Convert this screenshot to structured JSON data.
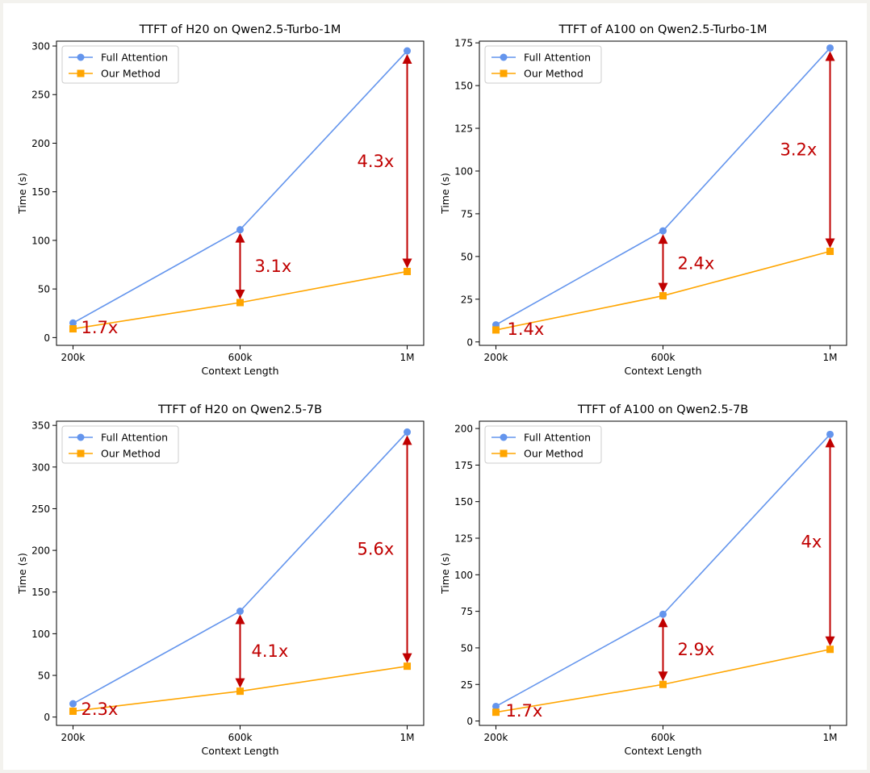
{
  "chart_data": [
    {
      "type": "line",
      "title": "TTFT of H20 on Qwen2.5-Turbo-1M",
      "xlabel": "Context Length",
      "ylabel": "Time (s)",
      "categories": [
        "200k",
        "600k",
        "1M"
      ],
      "ylim": [
        -8,
        305
      ],
      "yticks": [
        0,
        50,
        100,
        150,
        200,
        250,
        300
      ],
      "legend": "top-left",
      "grid": false,
      "series": [
        {
          "name": "Full Attention",
          "values": [
            15,
            111,
            295
          ],
          "color": "#6495ed",
          "marker": "circle"
        },
        {
          "name": "Our Method",
          "values": [
            9,
            36,
            68
          ],
          "color": "#ffa500",
          "marker": "square"
        }
      ],
      "annotations": [
        {
          "category": "200k",
          "label": "1.7x",
          "arrow": false
        },
        {
          "category": "600k",
          "label": "3.1x",
          "arrow": true
        },
        {
          "category": "1M",
          "label": "4.3x",
          "arrow": true
        }
      ]
    },
    {
      "type": "line",
      "title": "TTFT of A100 on Qwen2.5-Turbo-1M",
      "xlabel": "Context Length",
      "ylabel": "Time (s)",
      "categories": [
        "200k",
        "600k",
        "1M"
      ],
      "ylim": [
        -2,
        176
      ],
      "yticks": [
        0,
        25,
        50,
        75,
        100,
        125,
        150,
        175
      ],
      "legend": "top-left",
      "grid": false,
      "series": [
        {
          "name": "Full Attention",
          "values": [
            10,
            65,
            172
          ],
          "color": "#6495ed",
          "marker": "circle"
        },
        {
          "name": "Our Method",
          "values": [
            7,
            27,
            53
          ],
          "color": "#ffa500",
          "marker": "square"
        }
      ],
      "annotations": [
        {
          "category": "200k",
          "label": "1.4x",
          "arrow": false
        },
        {
          "category": "600k",
          "label": "2.4x",
          "arrow": true
        },
        {
          "category": "1M",
          "label": "3.2x",
          "arrow": true
        }
      ]
    },
    {
      "type": "line",
      "title": "TTFT of H20 on Qwen2.5-7B",
      "xlabel": "Context Length",
      "ylabel": "Time (s)",
      "categories": [
        "200k",
        "600k",
        "1M"
      ],
      "ylim": [
        -10,
        355
      ],
      "yticks": [
        0,
        50,
        100,
        150,
        200,
        250,
        300,
        350
      ],
      "legend": "top-left",
      "grid": false,
      "series": [
        {
          "name": "Full Attention",
          "values": [
            16,
            127,
            342
          ],
          "color": "#6495ed",
          "marker": "circle"
        },
        {
          "name": "Our Method",
          "values": [
            7,
            31,
            61
          ],
          "color": "#ffa500",
          "marker": "square"
        }
      ],
      "annotations": [
        {
          "category": "200k",
          "label": "2.3x",
          "arrow": false
        },
        {
          "category": "600k",
          "label": "4.1x",
          "arrow": true
        },
        {
          "category": "1M",
          "label": "5.6x",
          "arrow": true
        }
      ]
    },
    {
      "type": "line",
      "title": "TTFT of A100 on Qwen2.5-7B",
      "xlabel": "Context Length",
      "ylabel": "Time (s)",
      "categories": [
        "200k",
        "600k",
        "1M"
      ],
      "ylim": [
        -3,
        205
      ],
      "yticks": [
        0,
        25,
        50,
        75,
        100,
        125,
        150,
        175,
        200
      ],
      "legend": "top-left",
      "grid": false,
      "series": [
        {
          "name": "Full Attention",
          "values": [
            10,
            73,
            196
          ],
          "color": "#6495ed",
          "marker": "circle"
        },
        {
          "name": "Our Method",
          "values": [
            6,
            25,
            49
          ],
          "color": "#ffa500",
          "marker": "square"
        }
      ],
      "annotations": [
        {
          "category": "200k",
          "label": "1.7x",
          "arrow": false
        },
        {
          "category": "600k",
          "label": "2.9x",
          "arrow": true
        },
        {
          "category": "1M",
          "label": "4x",
          "arrow": true
        }
      ]
    }
  ],
  "colors": {
    "annotation": "#c00000",
    "axis": "#000000"
  }
}
